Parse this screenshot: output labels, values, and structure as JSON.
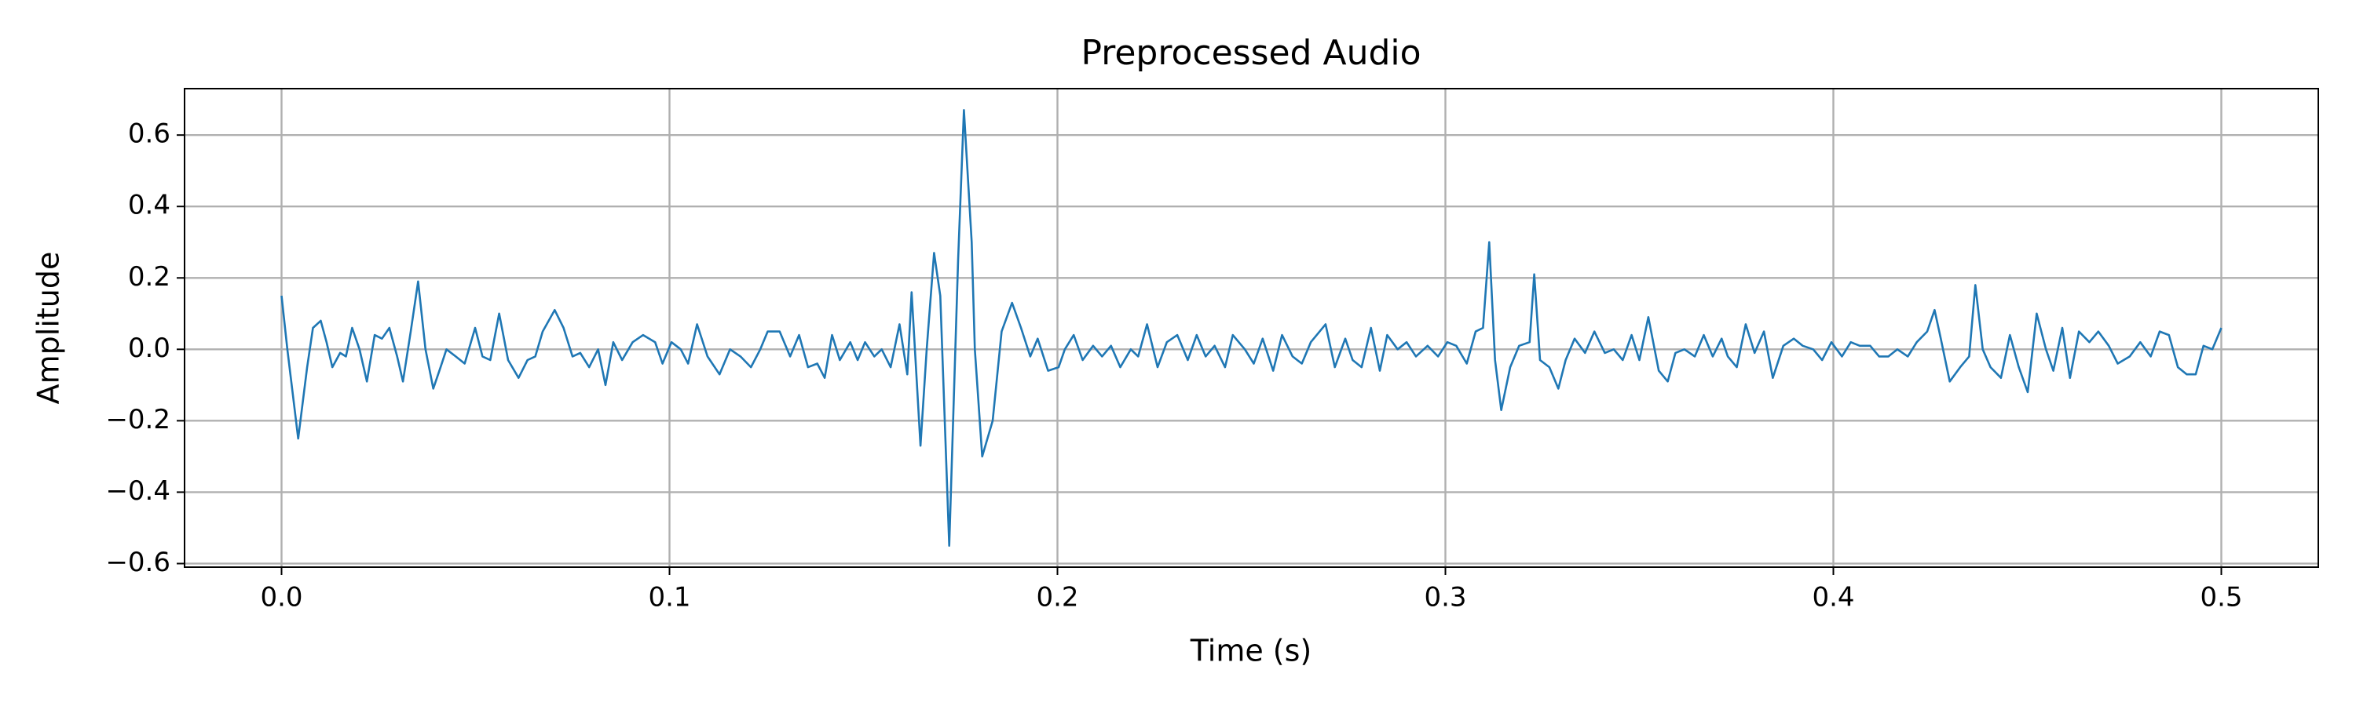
{
  "chart_data": {
    "type": "line",
    "title": "Preprocessed Audio",
    "x_label": "Time (s)",
    "y_label": "Amplitude",
    "color": "#1f77b4",
    "grid": true,
    "xlim": [
      -0.025,
      0.525
    ],
    "ylim": [
      -0.61,
      0.73
    ],
    "xticks": [
      {
        "value": 0,
        "label": "0.0"
      },
      0.1,
      0.2,
      0.3,
      0.4,
      0.5
    ],
    "yticks": [
      {
        "value": -0.6,
        "label": "−0.6"
      },
      {
        "value": -0.4,
        "label": "−0.4"
      },
      {
        "value": -0.2,
        "label": "−0.2"
      },
      {
        "value": 0,
        "label": "0.0"
      },
      0.2,
      0.4,
      0.6
    ],
    "x": [
      0,
      0.0015,
      0.0043,
      0.0066,
      0.0081,
      0.0101,
      0.0116,
      0.0131,
      0.0151,
      0.0166,
      0.0182,
      0.0201,
      0.022,
      0.024,
      0.0259,
      0.0278,
      0.0298,
      0.0313,
      0.0333,
      0.0352,
      0.0371,
      0.0391,
      0.041,
      0.0425,
      0.0449,
      0.0472,
      0.0499,
      0.0518,
      0.0538,
      0.0561,
      0.0584,
      0.0611,
      0.0634,
      0.0654,
      0.0673,
      0.0704,
      0.0727,
      0.075,
      0.077,
      0.0793,
      0.0816,
      0.0835,
      0.0855,
      0.0878,
      0.0905,
      0.0932,
      0.0963,
      0.0982,
      0.1005,
      0.1029,
      0.1048,
      0.1071,
      0.1098,
      0.1129,
      0.1156,
      0.1183,
      0.121,
      0.1234,
      0.1253,
      0.1284,
      0.1311,
      0.1334,
      0.1357,
      0.1381,
      0.14,
      0.1419,
      0.1439,
      0.1466,
      0.1485,
      0.1504,
      0.1528,
      0.1547,
      0.157,
      0.1593,
      0.1613,
      0.1624,
      0.1647,
      0.1663,
      0.1682,
      0.1698,
      0.1721,
      0.1744,
      0.1759,
      0.1779,
      0.1787,
      0.1806,
      0.1833,
      0.1856,
      0.1883,
      0.1906,
      0.193,
      0.1949,
      0.1976,
      0.2003,
      0.2019,
      0.2042,
      0.2065,
      0.2092,
      0.2115,
      0.2138,
      0.2162,
      0.2189,
      0.2208,
      0.2231,
      0.2258,
      0.2282,
      0.2309,
      0.2336,
      0.2359,
      0.2382,
      0.2405,
      0.2432,
      0.2452,
      0.2483,
      0.2506,
      0.2529,
      0.2556,
      0.2579,
      0.2606,
      0.263,
      0.2653,
      0.2691,
      0.2715,
      0.2742,
      0.2761,
      0.2784,
      0.2808,
      0.2831,
      0.285,
      0.2877,
      0.29,
      0.2924,
      0.2954,
      0.2981,
      0.3005,
      0.3028,
      0.3055,
      0.3078,
      0.3097,
      0.3113,
      0.3128,
      0.3144,
      0.3167,
      0.319,
      0.3217,
      0.3229,
      0.3244,
      0.3268,
      0.3291,
      0.331,
      0.3333,
      0.336,
      0.3384,
      0.3411,
      0.3434,
      0.3457,
      0.348,
      0.35,
      0.3523,
      0.355,
      0.3573,
      0.3593,
      0.3616,
      0.3643,
      0.3666,
      0.3689,
      0.3712,
      0.3728,
      0.3751,
      0.3774,
      0.3797,
      0.3821,
      0.3844,
      0.3871,
      0.3898,
      0.3921,
      0.3948,
      0.3971,
      0.3995,
      0.4022,
      0.4045,
      0.4068,
      0.4095,
      0.4118,
      0.4142,
      0.4165,
      0.4192,
      0.4215,
      0.4242,
      0.4261,
      0.4277,
      0.43,
      0.4327,
      0.435,
      0.4366,
      0.4385,
      0.4405,
      0.4432,
      0.4455,
      0.4478,
      0.4501,
      0.4524,
      0.4548,
      0.4567,
      0.459,
      0.461,
      0.4633,
      0.466,
      0.4683,
      0.471,
      0.4733,
      0.4764,
      0.4791,
      0.4818,
      0.4841,
      0.4865,
      0.4888,
      0.4911,
      0.4934,
      0.4954,
      0.4977,
      0.5
    ],
    "values": [
      0.15,
      0.0,
      -0.25,
      -0.05,
      0.06,
      0.08,
      0.02,
      -0.05,
      -0.01,
      -0.02,
      0.06,
      0.0,
      -0.09,
      0.04,
      0.03,
      0.06,
      -0.02,
      -0.09,
      0.05,
      0.19,
      0.0,
      -0.11,
      -0.05,
      0.0,
      -0.02,
      -0.04,
      0.06,
      -0.02,
      -0.03,
      0.1,
      -0.03,
      -0.08,
      -0.03,
      -0.02,
      0.05,
      0.11,
      0.06,
      -0.02,
      -0.01,
      -0.05,
      0.0,
      -0.1,
      0.02,
      -0.03,
      0.02,
      0.04,
      0.02,
      -0.04,
      0.02,
      0.0,
      -0.04,
      0.07,
      -0.02,
      -0.07,
      0.0,
      -0.02,
      -0.05,
      0.0,
      0.05,
      0.05,
      -0.02,
      0.04,
      -0.05,
      -0.04,
      -0.08,
      0.04,
      -0.03,
      0.02,
      -0.03,
      0.02,
      -0.02,
      0.0,
      -0.05,
      0.07,
      -0.07,
      0.16,
      -0.27,
      0.0,
      0.27,
      0.15,
      -0.55,
      0.25,
      0.67,
      0.3,
      0.0,
      -0.3,
      -0.2,
      0.05,
      0.13,
      0.06,
      -0.02,
      0.03,
      -0.06,
      -0.05,
      0.0,
      0.04,
      -0.03,
      0.01,
      -0.02,
      0.01,
      -0.05,
      0.0,
      -0.02,
      0.07,
      -0.05,
      0.02,
      0.04,
      -0.03,
      0.04,
      -0.02,
      0.01,
      -0.05,
      0.04,
      0.0,
      -0.04,
      0.03,
      -0.06,
      0.04,
      -0.02,
      -0.04,
      0.02,
      0.07,
      -0.05,
      0.03,
      -0.03,
      -0.05,
      0.06,
      -0.06,
      0.04,
      0.0,
      0.02,
      -0.02,
      0.01,
      -0.02,
      0.02,
      0.01,
      -0.04,
      0.05,
      0.06,
      0.3,
      -0.03,
      -0.17,
      -0.05,
      0.01,
      0.02,
      0.21,
      -0.03,
      -0.05,
      -0.11,
      -0.03,
      0.03,
      -0.01,
      0.05,
      -0.01,
      0.0,
      -0.03,
      0.04,
      -0.03,
      0.09,
      -0.06,
      -0.09,
      -0.01,
      0.0,
      -0.02,
      0.04,
      -0.02,
      0.03,
      -0.02,
      -0.05,
      0.07,
      -0.01,
      0.05,
      -0.08,
      0.01,
      0.03,
      0.01,
      0.0,
      -0.03,
      0.02,
      -0.02,
      0.02,
      0.01,
      0.01,
      -0.02,
      -0.02,
      0.0,
      -0.02,
      0.02,
      0.05,
      0.11,
      0.03,
      -0.09,
      -0.05,
      -0.02,
      0.18,
      0.0,
      -0.05,
      -0.08,
      0.04,
      -0.05,
      -0.12,
      0.1,
      0.0,
      -0.06,
      0.06,
      -0.08,
      0.05,
      0.02,
      0.05,
      0.01,
      -0.04,
      -0.02,
      0.02,
      -0.02,
      0.05,
      0.04,
      -0.05,
      -0.07,
      -0.07,
      0.01,
      0.0,
      0.06
    ]
  }
}
